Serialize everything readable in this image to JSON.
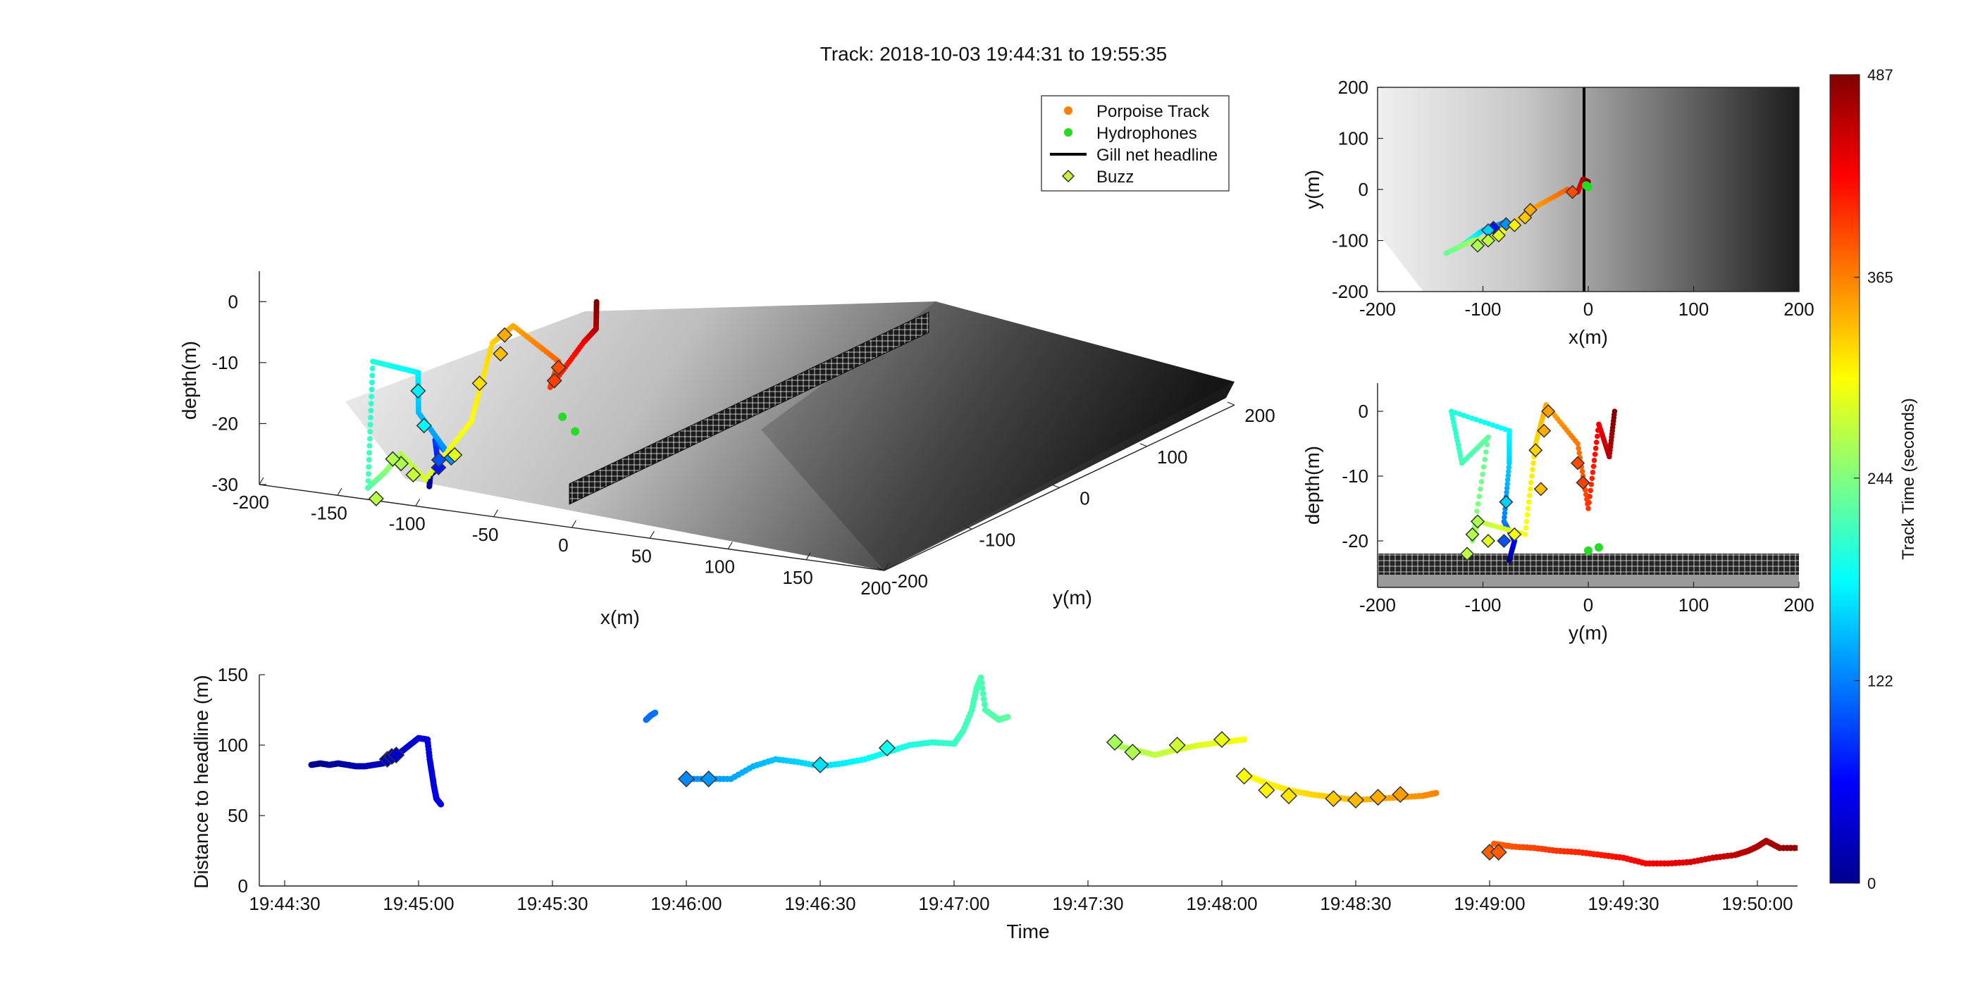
{
  "title": "Track: 2018-10-03 19:44:31 to 19:55:35",
  "legend": {
    "items": [
      {
        "label": "Porpoise Track",
        "marker": "dot",
        "color": "#ff7f0e"
      },
      {
        "label": "Hydrophones",
        "marker": "dot",
        "color": "#22dd22"
      },
      {
        "label": "Gill net headline",
        "marker": "line",
        "color": "#000000"
      },
      {
        "label": "Buzz",
        "marker": "diamond",
        "color": "#c9f03a"
      }
    ]
  },
  "colorbar": {
    "label": "Track Time (seconds)",
    "ticks": [
      "0",
      "122",
      "244",
      "365",
      "487"
    ],
    "range": [
      0,
      487
    ],
    "colormap": "jet"
  },
  "colors": {
    "net": "#000000",
    "hydrophone": "#22dd22",
    "buzz_edge": "#333333"
  },
  "chart_data": [
    {
      "id": "3d-view",
      "type": "scatter",
      "xlabel": "x(m)",
      "ylabel": "y(m)",
      "zlabel": "depth(m)",
      "xticks": [
        "-200",
        "-150",
        "-100",
        "-50",
        "0",
        "50",
        "100",
        "150",
        "200"
      ],
      "yticks": [
        "-200",
        "-100",
        "0",
        "100",
        "200"
      ],
      "zticks": [
        "0",
        "-10",
        "-20",
        "-30"
      ],
      "xlim": [
        -200,
        200
      ],
      "ylim": [
        -200,
        200
      ],
      "zlim": [
        -30,
        5
      ],
      "hydrophones": [
        [
          0,
          5,
          -17
        ],
        [
          -5,
          -5,
          -14
        ]
      ],
      "net": {
        "x": [
          0,
          0
        ],
        "y": [
          -200,
          200
        ],
        "z_top": -18,
        "z_bottom": -27
      },
      "track": [
        {
          "t": 0,
          "x": -80,
          "y": -90,
          "z": -21
        },
        {
          "t": 35,
          "x": -90,
          "y": -80,
          "z": -20
        },
        {
          "t": 60,
          "x": -85,
          "y": -75,
          "z": -19
        },
        {
          "t": 90,
          "x": -95,
          "y": -70,
          "z": -15
        },
        {
          "t": 125,
          "x": -80,
          "y": -65,
          "z": -18
        },
        {
          "t": 150,
          "x": -105,
          "y": -80,
          "z": -10
        },
        {
          "t": 175,
          "x": -100,
          "y": -85,
          "z": -3
        },
        {
          "t": 200,
          "x": -130,
          "y": -110,
          "z": 0
        },
        {
          "t": 220,
          "x": -125,
          "y": -120,
          "z": -20
        },
        {
          "t": 245,
          "x": -115,
          "y": -110,
          "z": -18
        },
        {
          "t": 265,
          "x": -100,
          "y": -105,
          "z": -15
        },
        {
          "t": 285,
          "x": -85,
          "y": -90,
          "z": -20
        },
        {
          "t": 305,
          "x": -60,
          "y": -60,
          "z": -12
        },
        {
          "t": 325,
          "x": -50,
          "y": -45,
          "z": 0
        },
        {
          "t": 345,
          "x": -40,
          "y": -30,
          "z": 2
        },
        {
          "t": 380,
          "x": -10,
          "y": -5,
          "z": -5
        },
        {
          "t": 400,
          "x": -15,
          "y": -10,
          "z": -9
        },
        {
          "t": 430,
          "x": 0,
          "y": 15,
          "z": -3
        },
        {
          "t": 460,
          "x": 10,
          "y": 20,
          "z": -1
        },
        {
          "t": 487,
          "x": 5,
          "y": 25,
          "z": 3
        }
      ],
      "buzzes": [
        {
          "t": 70,
          "x": -85,
          "y": -75,
          "z": -19
        },
        {
          "t": 100,
          "x": -88,
          "y": -72,
          "z": -18
        },
        {
          "t": 130,
          "x": -80,
          "y": -65,
          "z": -18
        },
        {
          "t": 175,
          "x": -100,
          "y": -85,
          "z": -6
        },
        {
          "t": 180,
          "x": -98,
          "y": -80,
          "z": -12
        },
        {
          "t": 265,
          "x": -105,
          "y": -100,
          "z": -17
        },
        {
          "t": 268,
          "x": -110,
          "y": -105,
          "z": -16
        },
        {
          "t": 272,
          "x": -120,
          "y": -115,
          "z": -22
        },
        {
          "t": 276,
          "x": -95,
          "y": -95,
          "z": -19
        },
        {
          "t": 290,
          "x": -70,
          "y": -70,
          "z": -17
        },
        {
          "t": 320,
          "x": -55,
          "y": -55,
          "z": -6
        },
        {
          "t": 335,
          "x": -45,
          "y": -40,
          "z": -2
        },
        {
          "t": 345,
          "x": -42,
          "y": -38,
          "z": 1
        },
        {
          "t": 390,
          "x": -10,
          "y": -5,
          "z": -6
        },
        {
          "t": 395,
          "x": -12,
          "y": -8,
          "z": -8
        }
      ]
    },
    {
      "id": "top-view",
      "type": "scatter",
      "xlabel": "x(m)",
      "ylabel": "y(m)",
      "xticks": [
        "-200",
        "-100",
        "0",
        "100",
        "200"
      ],
      "yticks": [
        "200",
        "100",
        "0",
        "-100",
        "-200"
      ],
      "xlim": [
        -200,
        200
      ],
      "ylim": [
        -200,
        200
      ],
      "hydrophones": [
        [
          0,
          5
        ],
        [
          -2,
          8
        ]
      ],
      "net": {
        "x": 0
      },
      "track": [
        {
          "t": 0,
          "x": -85,
          "y": -70
        },
        {
          "t": 40,
          "x": -95,
          "y": -85
        },
        {
          "t": 80,
          "x": -90,
          "y": -75
        },
        {
          "t": 120,
          "x": -80,
          "y": -65
        },
        {
          "t": 160,
          "x": -100,
          "y": -80
        },
        {
          "t": 200,
          "x": -120,
          "y": -110
        },
        {
          "t": 230,
          "x": -135,
          "y": -125
        },
        {
          "t": 260,
          "x": -110,
          "y": -100
        },
        {
          "t": 290,
          "x": -90,
          "y": -95
        },
        {
          "t": 320,
          "x": -70,
          "y": -65
        },
        {
          "t": 345,
          "x": -55,
          "y": -40
        },
        {
          "t": 380,
          "x": -20,
          "y": 0
        },
        {
          "t": 420,
          "x": -10,
          "y": -5
        },
        {
          "t": 460,
          "x": -5,
          "y": 20
        },
        {
          "t": 487,
          "x": 0,
          "y": 15
        }
      ],
      "buzzes": [
        {
          "t": 70,
          "x": -90,
          "y": -75
        },
        {
          "t": 130,
          "x": -78,
          "y": -68
        },
        {
          "t": 160,
          "x": -95,
          "y": -80
        },
        {
          "t": 265,
          "x": -105,
          "y": -110
        },
        {
          "t": 275,
          "x": -95,
          "y": -100
        },
        {
          "t": 290,
          "x": -85,
          "y": -90
        },
        {
          "t": 310,
          "x": -70,
          "y": -70
        },
        {
          "t": 330,
          "x": -60,
          "y": -55
        },
        {
          "t": 345,
          "x": -55,
          "y": -40
        },
        {
          "t": 390,
          "x": -15,
          "y": -5
        }
      ]
    },
    {
      "id": "side-view",
      "type": "scatter",
      "xlabel": "y(m)",
      "ylabel": "depth(m)",
      "xticks": [
        "-200",
        "-100",
        "0",
        "100",
        "200"
      ],
      "yticks": [
        "0",
        "-10",
        "-20"
      ],
      "xlim": [
        -200,
        200
      ],
      "ylim": [
        -27,
        3
      ],
      "hydrophones": [
        [
          0,
          -21.5
        ],
        [
          10,
          -21
        ]
      ],
      "net": {
        "z_top": -22,
        "z_bottom": -26
      },
      "track": [
        {
          "t": 0,
          "x": -75,
          "y": -23
        },
        {
          "t": 60,
          "x": -70,
          "y": -20
        },
        {
          "t": 120,
          "x": -80,
          "y": -17
        },
        {
          "t": 160,
          "x": -75,
          "y": -8
        },
        {
          "t": 180,
          "x": -75,
          "y": -3
        },
        {
          "t": 200,
          "x": -130,
          "y": 0
        },
        {
          "t": 215,
          "x": -120,
          "y": -8
        },
        {
          "t": 230,
          "x": -95,
          "y": -4
        },
        {
          "t": 250,
          "x": -110,
          "y": -20
        },
        {
          "t": 270,
          "x": -105,
          "y": -17
        },
        {
          "t": 300,
          "x": -60,
          "y": -19
        },
        {
          "t": 320,
          "x": -50,
          "y": -5
        },
        {
          "t": 345,
          "x": -40,
          "y": 1
        },
        {
          "t": 370,
          "x": -10,
          "y": -5
        },
        {
          "t": 400,
          "x": 0,
          "y": -15
        },
        {
          "t": 430,
          "x": 10,
          "y": -2
        },
        {
          "t": 460,
          "x": 20,
          "y": -7
        },
        {
          "t": 487,
          "x": 25,
          "y": 0
        }
      ],
      "buzzes": [
        {
          "t": 100,
          "x": -80,
          "y": -20
        },
        {
          "t": 160,
          "x": -78,
          "y": -14
        },
        {
          "t": 265,
          "x": -105,
          "y": -17
        },
        {
          "t": 268,
          "x": -110,
          "y": -19
        },
        {
          "t": 272,
          "x": -115,
          "y": -22
        },
        {
          "t": 290,
          "x": -95,
          "y": -20
        },
        {
          "t": 300,
          "x": -70,
          "y": -19
        },
        {
          "t": 325,
          "x": -50,
          "y": -6
        },
        {
          "t": 335,
          "x": -45,
          "y": -12
        },
        {
          "t": 345,
          "x": -42,
          "y": -3
        },
        {
          "t": 350,
          "x": -38,
          "y": 0
        },
        {
          "t": 390,
          "x": -10,
          "y": -8
        },
        {
          "t": 395,
          "x": -5,
          "y": -11
        }
      ]
    },
    {
      "id": "distance-plot",
      "type": "scatter",
      "xlabel": "Time",
      "ylabel": "Distance to headline (m)",
      "xticks": [
        "19:44:30",
        "19:45:00",
        "19:45:30",
        "19:46:00",
        "19:46:30",
        "19:47:00",
        "19:47:30",
        "19:48:00",
        "19:48:30",
        "19:49:00",
        "19:49:30",
        "19:50:00"
      ],
      "yticks": [
        "0",
        "50",
        "100",
        "150"
      ],
      "xlim_seconds_after_19_44_30": [
        0,
        345
      ],
      "ylim": [
        0,
        150
      ],
      "segments": [
        {
          "t0": 6,
          "points": [
            [
              6,
              86
            ],
            [
              8,
              87
            ],
            [
              10,
              86
            ],
            [
              12,
              87
            ],
            [
              14,
              86
            ],
            [
              16,
              85
            ],
            [
              18,
              85
            ],
            [
              20,
              86
            ],
            [
              22,
              87
            ],
            [
              24,
              89
            ],
            [
              25,
              92
            ],
            [
              26,
              95
            ],
            [
              28,
              100
            ],
            [
              30,
              105
            ],
            [
              32,
              104
            ],
            [
              32.5,
              90
            ],
            [
              33,
              80
            ],
            [
              33.5,
              70
            ],
            [
              34,
              62
            ],
            [
              35,
              58
            ]
          ]
        },
        {
          "t0": 81,
          "points": [
            [
              81,
              118
            ],
            [
              82,
              121
            ],
            [
              83,
              123
            ]
          ]
        },
        {
          "t0": 90,
          "points": [
            [
              90,
              76
            ],
            [
              95,
              76
            ],
            [
              100,
              76
            ],
            [
              105,
              85
            ],
            [
              110,
              90
            ],
            [
              115,
              88
            ],
            [
              120,
              85
            ],
            [
              125,
              87
            ],
            [
              130,
              90
            ],
            [
              135,
              95
            ],
            [
              140,
              100
            ],
            [
              145,
              102
            ],
            [
              150,
              101
            ],
            [
              152,
              110
            ],
            [
              154,
              125
            ],
            [
              155,
              140
            ],
            [
              156,
              148
            ],
            [
              157,
              125
            ],
            [
              160,
              118
            ],
            [
              162,
              120
            ]
          ]
        },
        {
          "t0": 186,
          "points": [
            [
              186,
              100
            ],
            [
              190,
              97
            ],
            [
              195,
              93
            ],
            [
              200,
              97
            ],
            [
              205,
              100
            ],
            [
              210,
              102
            ],
            [
              215,
              104
            ]
          ]
        },
        {
          "t0": 216,
          "points": [
            [
              216,
              78
            ],
            [
              220,
              73
            ],
            [
              225,
              68
            ],
            [
              230,
              65
            ],
            [
              235,
              63
            ],
            [
              240,
              61
            ],
            [
              245,
              62
            ],
            [
              250,
              63
            ],
            [
              255,
              64
            ],
            [
              258,
              66
            ]
          ]
        },
        {
          "t0": 271,
          "points": [
            [
              271,
              30
            ],
            [
              275,
              28
            ],
            [
              280,
              27
            ],
            [
              285,
              25
            ],
            [
              290,
              24
            ],
            [
              295,
              22
            ],
            [
              300,
              20
            ],
            [
              305,
              16
            ],
            [
              310,
              16
            ],
            [
              315,
              17
            ],
            [
              320,
              20
            ],
            [
              325,
              22
            ],
            [
              328,
              25
            ],
            [
              330,
              28
            ],
            [
              332,
              32
            ],
            [
              335,
              27
            ],
            [
              340,
              27
            ],
            [
              342,
              28
            ]
          ]
        }
      ],
      "buzzes": [
        {
          "s": 23,
          "d": 90
        },
        {
          "s": 24,
          "d": 92
        },
        {
          "s": 25,
          "d": 93
        },
        {
          "s": 90,
          "d": 76
        },
        {
          "s": 95,
          "d": 76
        },
        {
          "s": 120,
          "d": 86
        },
        {
          "s": 135,
          "d": 98
        },
        {
          "s": 186,
          "d": 102
        },
        {
          "s": 190,
          "d": 95
        },
        {
          "s": 200,
          "d": 100
        },
        {
          "s": 210,
          "d": 104
        },
        {
          "s": 215,
          "d": 78
        },
        {
          "s": 220,
          "d": 68
        },
        {
          "s": 225,
          "d": 64
        },
        {
          "s": 235,
          "d": 62
        },
        {
          "s": 240,
          "d": 61
        },
        {
          "s": 245,
          "d": 63
        },
        {
          "s": 250,
          "d": 65
        },
        {
          "s": 270,
          "d": 24
        },
        {
          "s": 272,
          "d": 24
        }
      ]
    }
  ]
}
